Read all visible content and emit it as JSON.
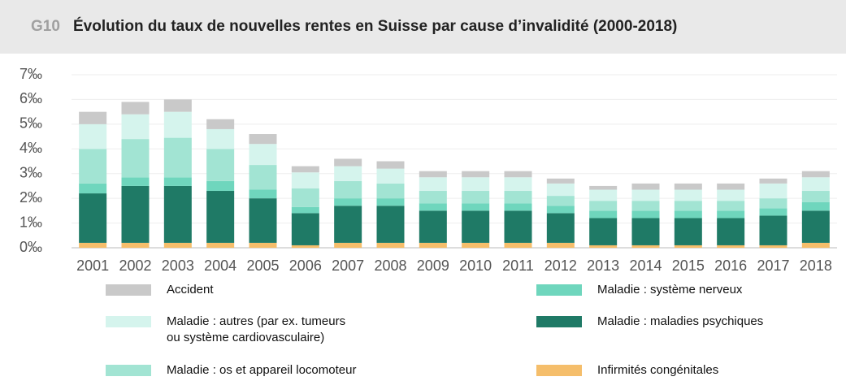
{
  "chart_data": {
    "type": "stacked_bar",
    "label": "G10",
    "title": "Évolution du taux de nouvelles rentes en Suisse par cause d’invalidité (2000-2018)",
    "categories": [
      "2001",
      "2002",
      "2003",
      "2004",
      "2005",
      "2006",
      "2007",
      "2008",
      "2009",
      "2010",
      "2011",
      "2012",
      "2013",
      "2014",
      "2015",
      "2016",
      "2017",
      "2018"
    ],
    "series": [
      {
        "name": "Infirmités congénitales",
        "color": "#f5be6b",
        "values": [
          0.2,
          0.2,
          0.2,
          0.2,
          0.2,
          0.1,
          0.2,
          0.2,
          0.2,
          0.2,
          0.2,
          0.2,
          0.1,
          0.1,
          0.1,
          0.1,
          0.1,
          0.2
        ]
      },
      {
        "name": "Maladie : maladies psychiques",
        "color": "#1f7a66",
        "values": [
          2.0,
          2.3,
          2.3,
          2.1,
          1.8,
          1.3,
          1.5,
          1.5,
          1.3,
          1.3,
          1.3,
          1.2,
          1.1,
          1.1,
          1.1,
          1.1,
          1.2,
          1.3
        ]
      },
      {
        "name": "Maladie : système nerveux",
        "color": "#6fd6bd",
        "values": [
          0.4,
          0.35,
          0.35,
          0.4,
          0.35,
          0.25,
          0.3,
          0.3,
          0.3,
          0.3,
          0.3,
          0.3,
          0.3,
          0.3,
          0.3,
          0.3,
          0.3,
          0.35
        ]
      },
      {
        "name": "Maladie : os et appareil locomoteur",
        "color": "#a2e4d3",
        "values": [
          1.4,
          1.55,
          1.6,
          1.3,
          1.0,
          0.75,
          0.7,
          0.6,
          0.5,
          0.5,
          0.5,
          0.4,
          0.4,
          0.4,
          0.4,
          0.4,
          0.4,
          0.45
        ]
      },
      {
        "name": "Maladie : autres (par ex. tumeurs ou système cardiovasculaire)",
        "color": "#d5f4ed",
        "values": [
          1.0,
          1.0,
          1.05,
          0.8,
          0.85,
          0.65,
          0.6,
          0.6,
          0.55,
          0.55,
          0.55,
          0.5,
          0.45,
          0.45,
          0.45,
          0.45,
          0.6,
          0.55
        ]
      },
      {
        "name": "Accident",
        "color": "#c9c9c9",
        "values": [
          0.5,
          0.5,
          0.5,
          0.4,
          0.4,
          0.25,
          0.3,
          0.3,
          0.25,
          0.25,
          0.25,
          0.2,
          0.15,
          0.25,
          0.25,
          0.25,
          0.2,
          0.25
        ]
      }
    ],
    "ylim": [
      0,
      7
    ],
    "yticks": [
      {
        "value": 0,
        "label": "0‰"
      },
      {
        "value": 1,
        "label": "1‰"
      },
      {
        "value": 2,
        "label": "2‰"
      },
      {
        "value": 3,
        "label": "3‰"
      },
      {
        "value": 4,
        "label": "4‰"
      },
      {
        "value": 5,
        "label": "5‰"
      },
      {
        "value": 6,
        "label": "6‰"
      },
      {
        "value": 7,
        "label": "7‰"
      }
    ],
    "grid": true
  }
}
